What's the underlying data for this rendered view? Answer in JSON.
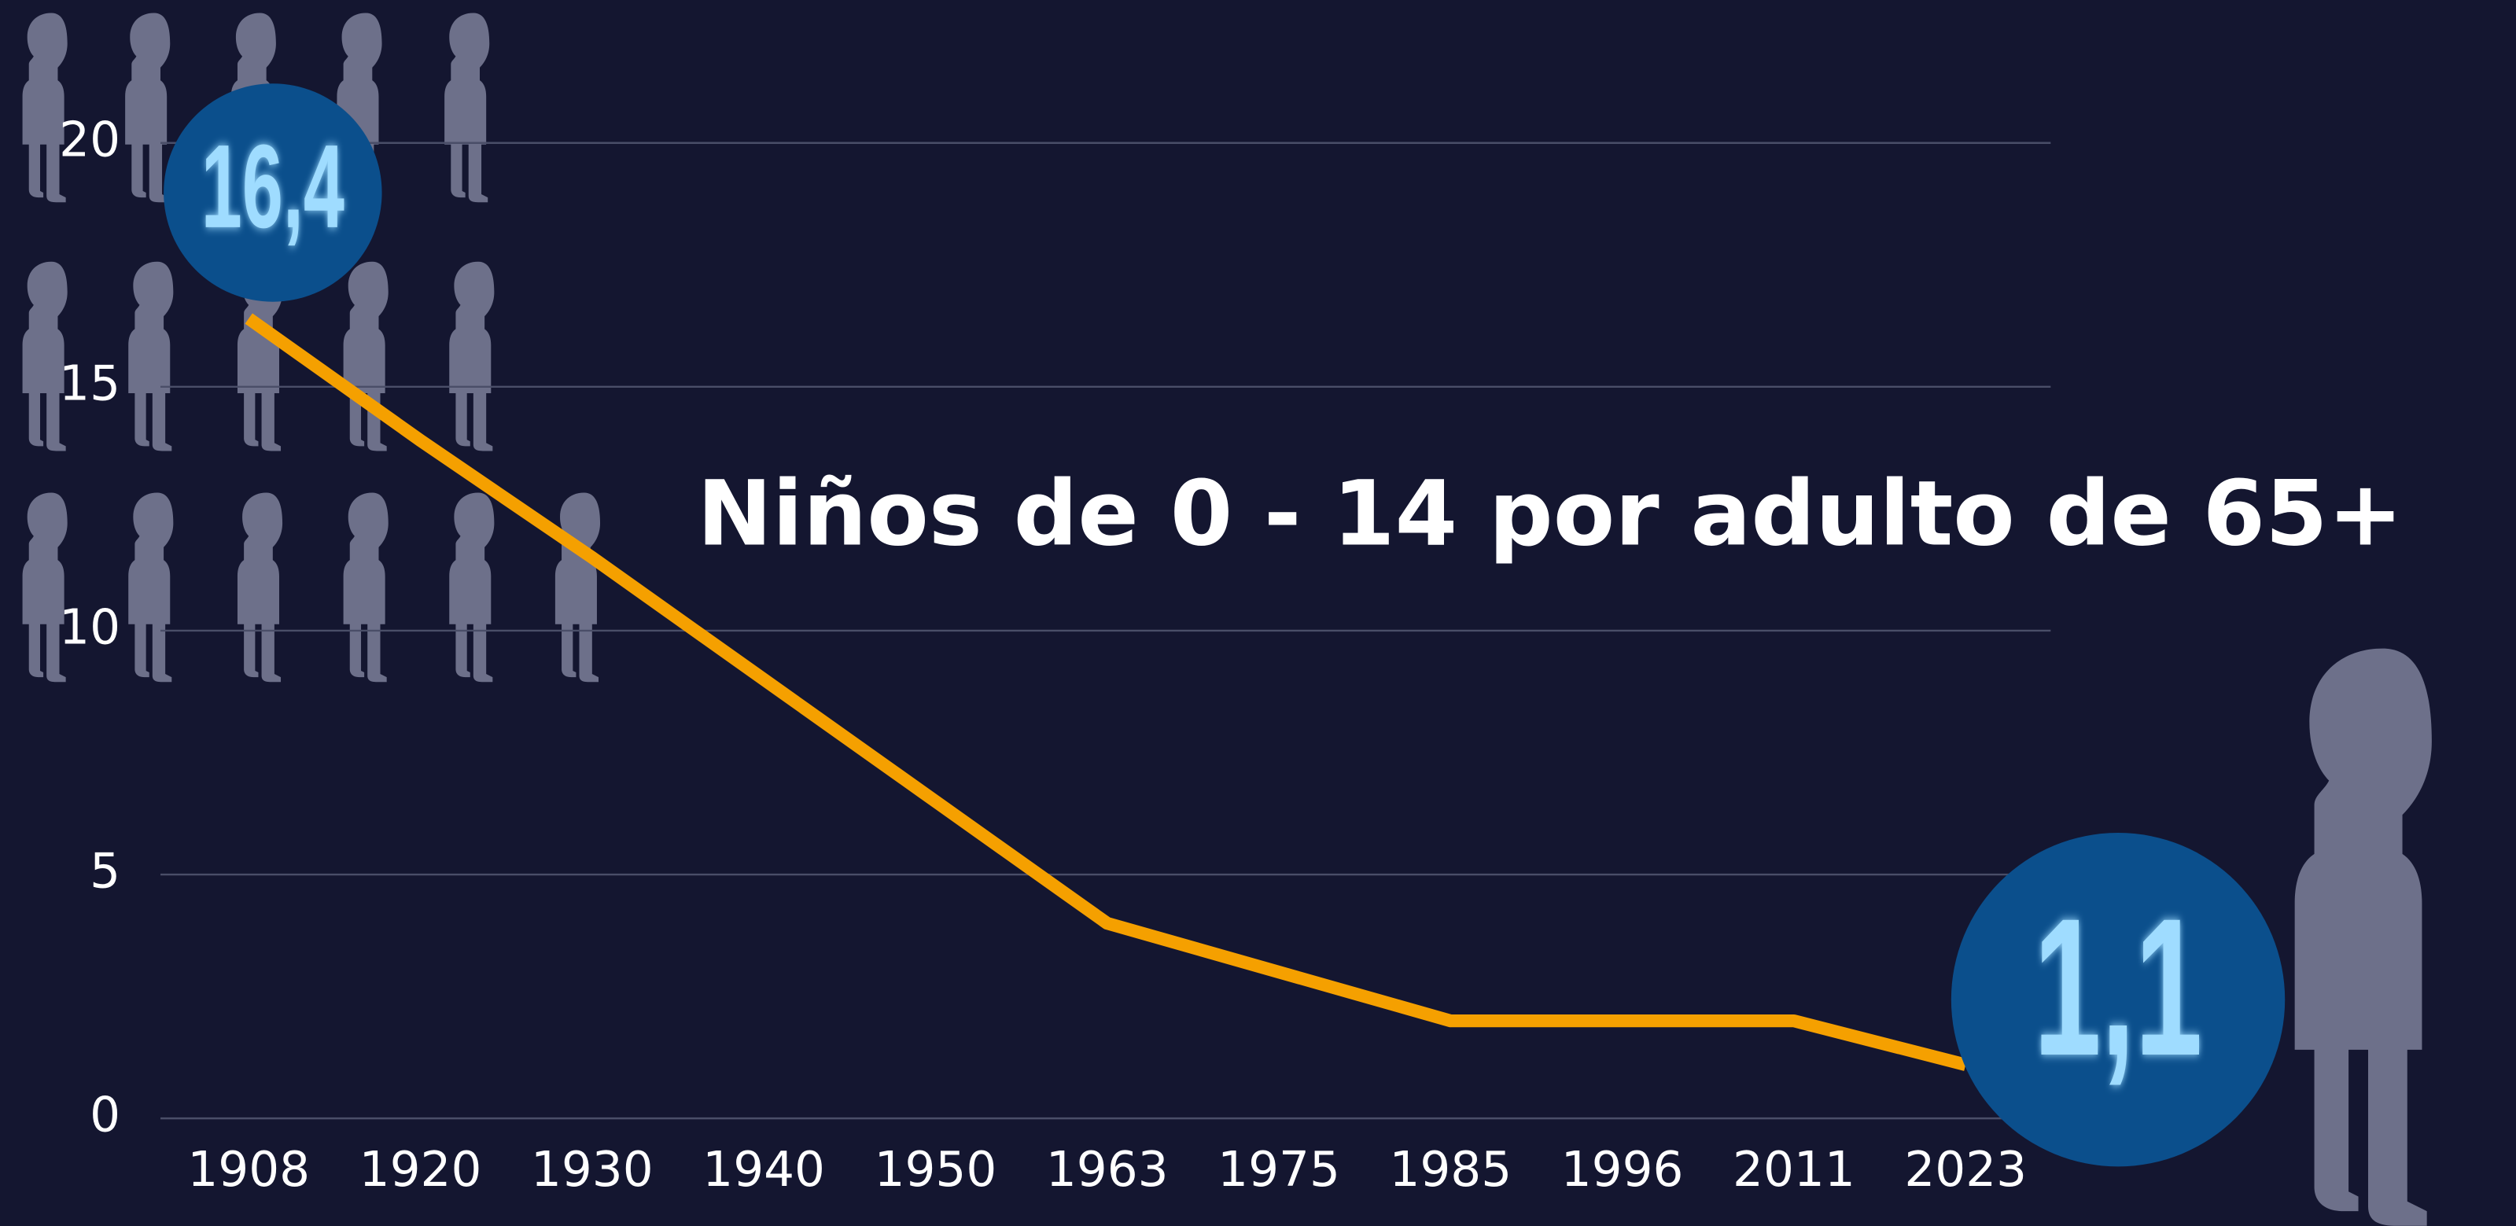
{
  "chart_data": {
    "type": "line",
    "title": "Niños de 0 - 14 por adulto de 65+",
    "categories": [
      "1908",
      "1920",
      "1930",
      "1940",
      "1950",
      "1963",
      "1975",
      "1985",
      "1996",
      "2011",
      "2023"
    ],
    "series": [
      {
        "name": null,
        "color": "#f5a000",
        "values": [
          16.4,
          13.9,
          11.5,
          9.0,
          6.5,
          4.0,
          3.0,
          2.0,
          2.0,
          2.0,
          1.1
        ],
        "value_labels": [
          "16,4",
          null,
          null,
          null,
          null,
          null,
          null,
          null,
          null,
          null,
          "1,1"
        ]
      }
    ],
    "ylim": [
      0,
      20
    ],
    "yticks": [
      0,
      5,
      10,
      15,
      20
    ],
    "grid": true
  }
}
